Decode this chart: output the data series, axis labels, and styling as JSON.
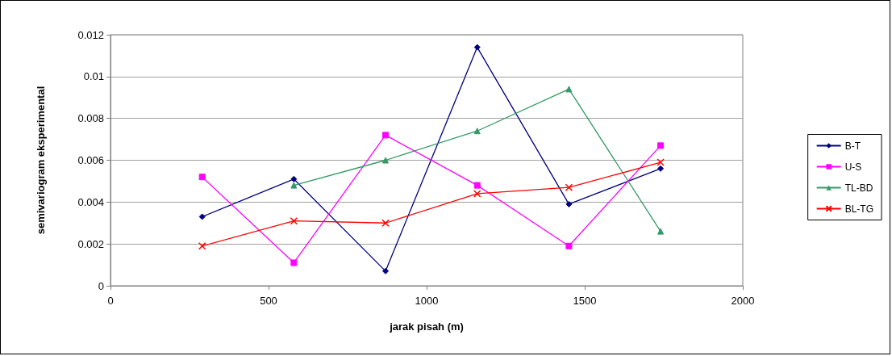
{
  "chart_data": {
    "type": "line",
    "xlabel": "jarak pisah (m)",
    "ylabel": "semivariogram eksperimental",
    "xlim": [
      0,
      2000
    ],
    "xticks": [
      0,
      500,
      1000,
      1500,
      2000
    ],
    "ylim": [
      0,
      0.012
    ],
    "yticks": [
      0,
      0.002,
      0.004,
      0.006,
      0.008,
      0.01,
      0.012
    ],
    "grid": "y",
    "legend": "right",
    "series": [
      {
        "name": "B-T",
        "color": "#000080",
        "marker": "diamond",
        "x": [
          290,
          580,
          870,
          1160,
          1450,
          1740
        ],
        "values": [
          0.0033,
          0.0051,
          0.0007,
          0.0114,
          0.0039,
          0.0056
        ]
      },
      {
        "name": "U-S",
        "color": "#ff00ff",
        "marker": "square",
        "x": [
          290,
          580,
          870,
          1160,
          1450,
          1740
        ],
        "values": [
          0.0052,
          0.0011,
          0.0072,
          0.0048,
          0.0019,
          0.0067
        ]
      },
      {
        "name": "TL-BD",
        "color": "#339966",
        "marker": "triangle",
        "x": [
          580,
          870,
          1160,
          1450,
          1740
        ],
        "values": [
          0.0048,
          0.006,
          0.0074,
          0.0094,
          0.0026
        ]
      },
      {
        "name": "BL-TG",
        "color": "#ff0000",
        "marker": "cross",
        "x": [
          290,
          580,
          870,
          1160,
          1450,
          1740
        ],
        "values": [
          0.0019,
          0.0031,
          0.003,
          0.0044,
          0.0047,
          0.0059
        ]
      }
    ]
  }
}
